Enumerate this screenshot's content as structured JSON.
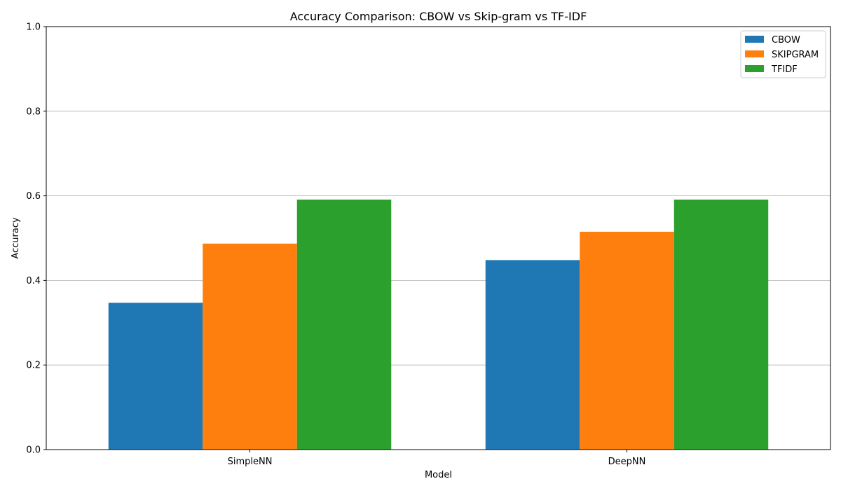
{
  "chart_data": {
    "type": "bar",
    "title": "Accuracy Comparison: CBOW vs Skip-gram vs TF-IDF",
    "xlabel": "Model",
    "ylabel": "Accuracy",
    "categories": [
      "SimpleNN",
      "DeepNN"
    ],
    "series": [
      {
        "name": "CBOW",
        "color": "#1f77b4",
        "values": [
          0.347,
          0.448
        ]
      },
      {
        "name": "SKIPGRAM",
        "color": "#ff7f0e",
        "values": [
          0.487,
          0.515
        ]
      },
      {
        "name": "TFIDF",
        "color": "#2ca02c",
        "values": [
          0.591,
          0.591
        ]
      }
    ],
    "ylim": [
      0,
      1.0
    ],
    "yticks": [
      "0.0",
      "0.2",
      "0.4",
      "0.6",
      "0.8",
      "1.0"
    ],
    "grid": "horizontal",
    "legend_position": "top-right"
  }
}
